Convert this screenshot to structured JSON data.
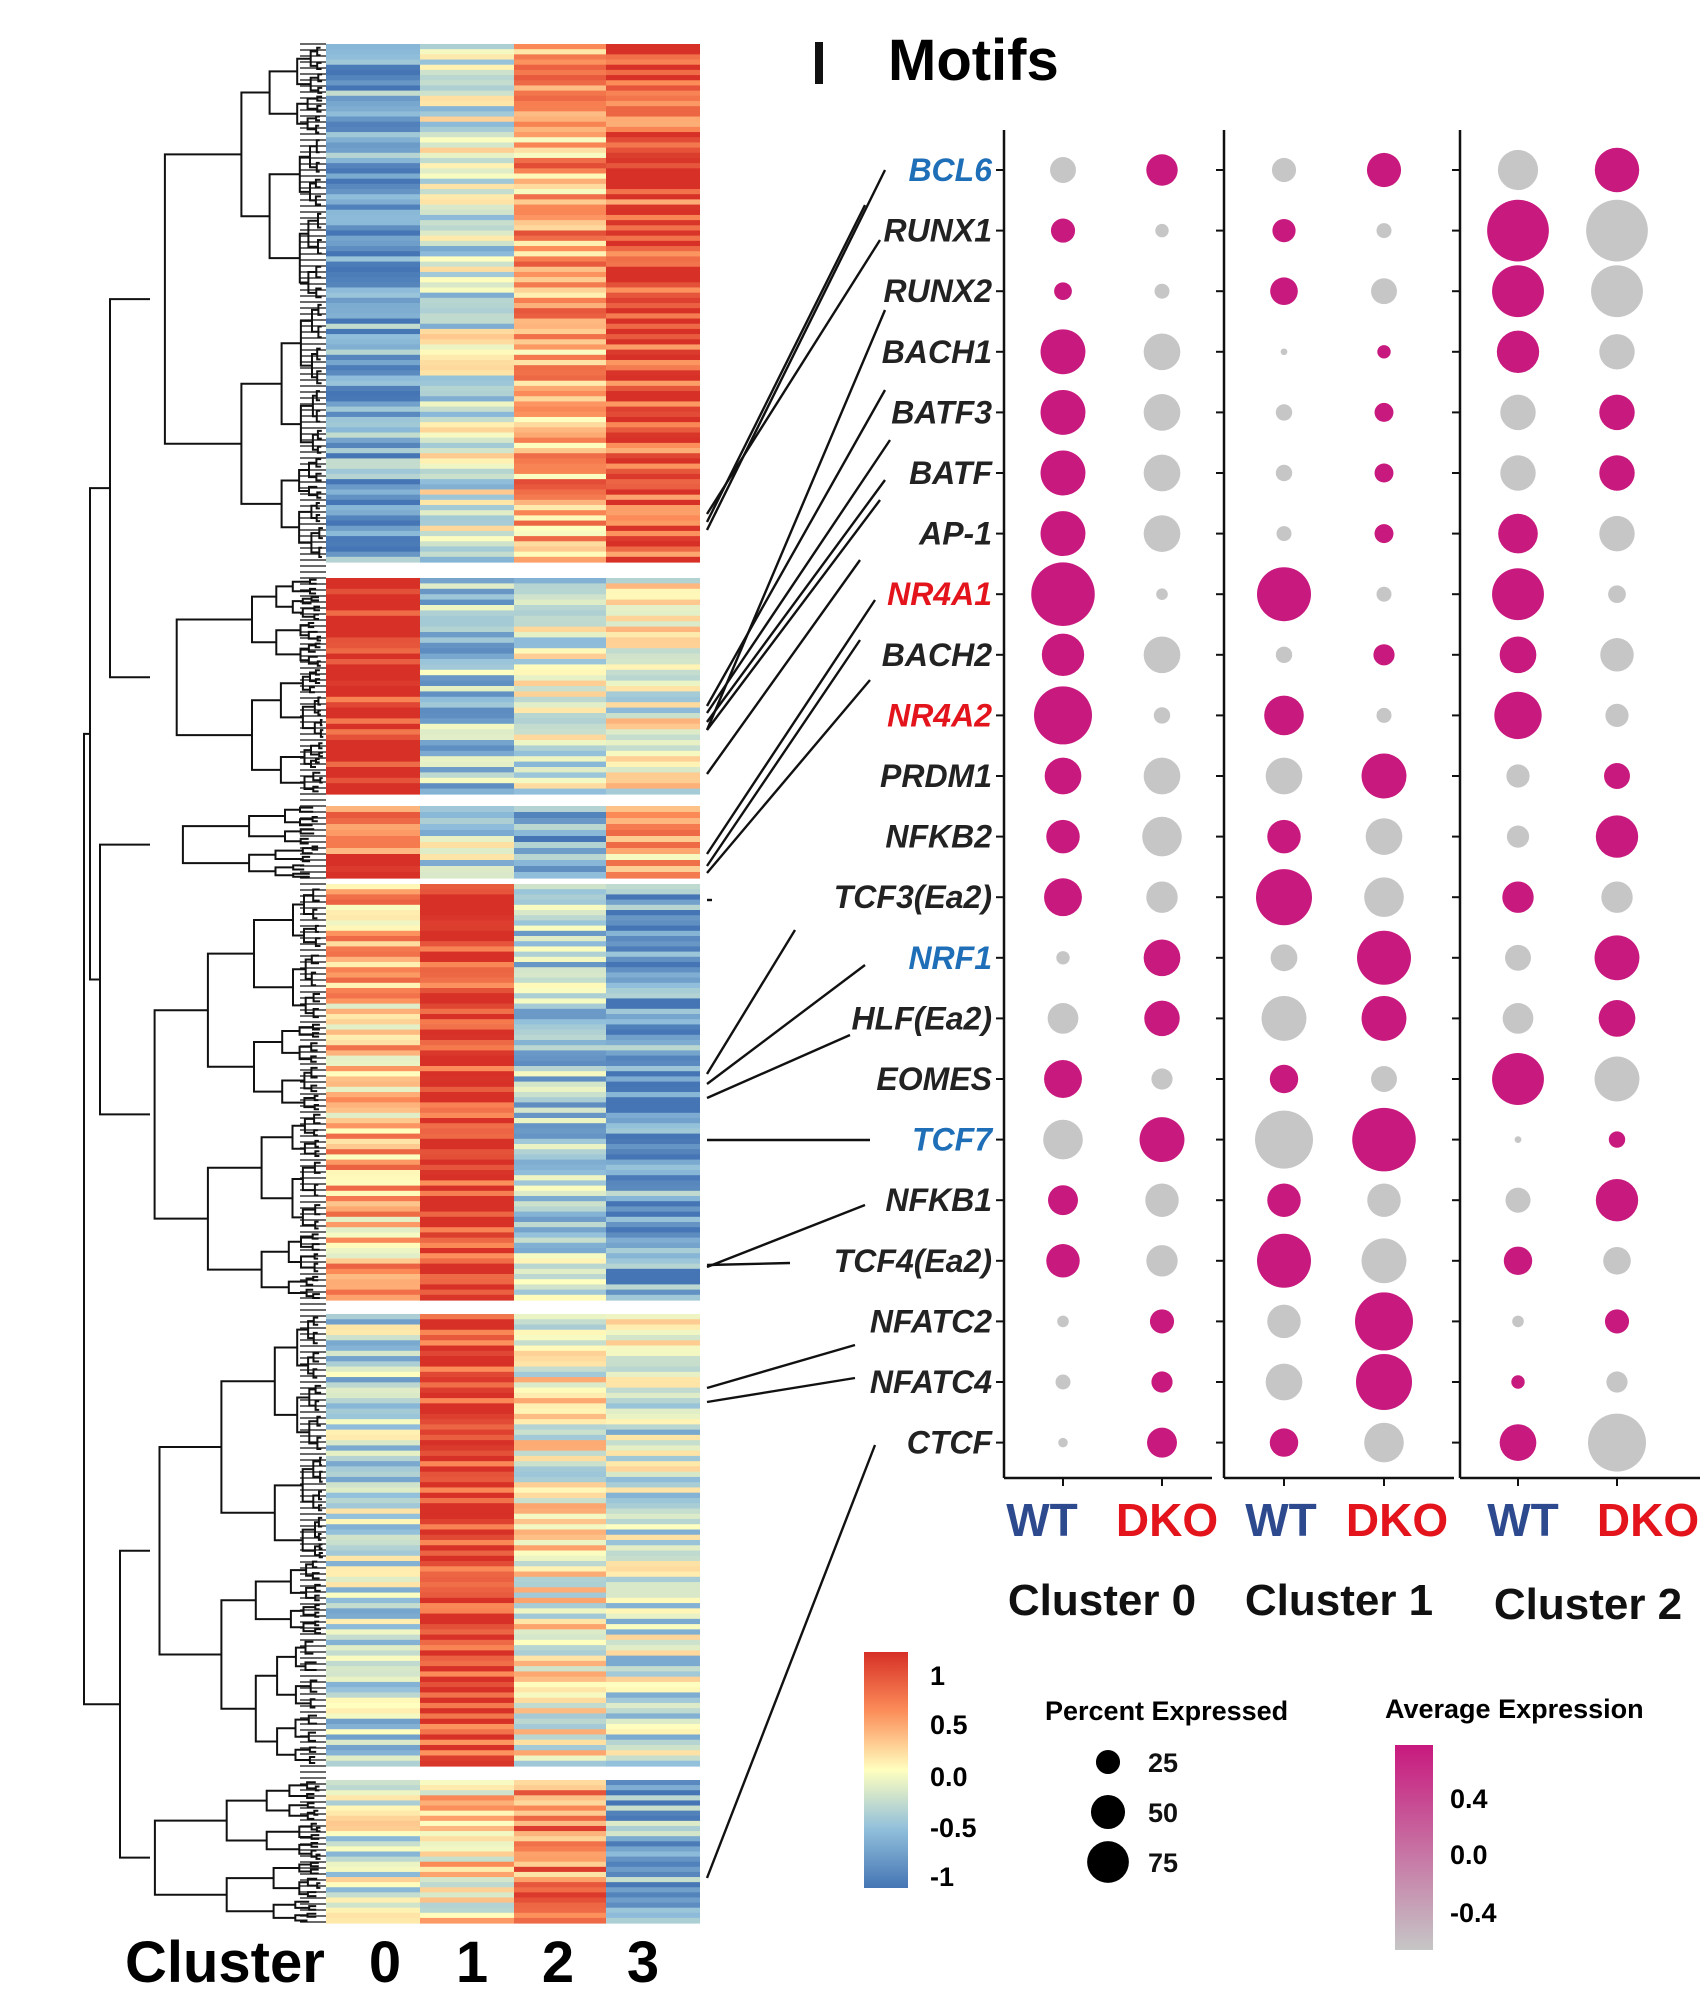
{
  "panel": {
    "letter": "I",
    "title": "Motifs"
  },
  "heatmap": {
    "column_axis_label": "Cluster",
    "columns": [
      "0",
      "1",
      "2",
      "3"
    ],
    "row_blocks": [
      {
        "block": 1,
        "rows": 100,
        "profile": [
          -0.7,
          -0.2,
          0.4,
          0.8
        ]
      },
      {
        "block": 2,
        "rows": 40,
        "profile": [
          1.0,
          -0.4,
          -0.2,
          -0.1
        ]
      },
      {
        "block": 3,
        "rows": 12,
        "profile": [
          0.6,
          -0.3,
          -0.7,
          0.4
        ]
      },
      {
        "block": 4,
        "rows": 80,
        "profile": [
          0.3,
          0.9,
          -0.4,
          -0.7
        ]
      },
      {
        "block": 5,
        "rows": 86,
        "profile": [
          -0.3,
          0.9,
          0.0,
          -0.2
        ]
      },
      {
        "block": 6,
        "rows": 28,
        "profile": [
          -0.2,
          0.1,
          0.5,
          -0.6
        ]
      }
    ],
    "colorbar": {
      "ticks": [
        "1",
        "0.5",
        "0.0",
        "-0.5",
        "-1"
      ],
      "colors": [
        "#d73027",
        "#fc8d59",
        "#ffffbf",
        "#91bfdb",
        "#4575b4"
      ]
    }
  },
  "motif_labels_colors": {
    "default": "#222222",
    "red": "#e3141b",
    "blue": "#1f6fb8"
  },
  "chart_data": {
    "type": "dot",
    "title": "Motifs",
    "groups": [
      "Cluster 0",
      "Cluster 1",
      "Cluster 2"
    ],
    "conditions": [
      "WT",
      "DKO"
    ],
    "condition_colors": {
      "WT": "#2e4a8f",
      "DKO": "#e3141b"
    },
    "motifs": [
      {
        "name": "BCL6",
        "label_color": "blue"
      },
      {
        "name": "RUNX1",
        "label_color": "default"
      },
      {
        "name": "RUNX2",
        "label_color": "default"
      },
      {
        "name": "BACH1",
        "label_color": "default"
      },
      {
        "name": "BATF3",
        "label_color": "default"
      },
      {
        "name": "BATF",
        "label_color": "default"
      },
      {
        "name": "AP-1",
        "label_color": "default"
      },
      {
        "name": "NR4A1",
        "label_color": "red"
      },
      {
        "name": "BACH2",
        "label_color": "default"
      },
      {
        "name": "NR4A2",
        "label_color": "red"
      },
      {
        "name": "PRDM1",
        "label_color": "default"
      },
      {
        "name": "NFKB2",
        "label_color": "default"
      },
      {
        "name": "TCF3(Ea2)",
        "label_color": "default"
      },
      {
        "name": "NRF1",
        "label_color": "blue"
      },
      {
        "name": "HLF(Ea2)",
        "label_color": "default"
      },
      {
        "name": "EOMES",
        "label_color": "default"
      },
      {
        "name": "TCF7",
        "label_color": "blue"
      },
      {
        "name": "NFKB1",
        "label_color": "default"
      },
      {
        "name": "TCF4(Ea2)",
        "label_color": "default"
      },
      {
        "name": "NFATC2",
        "label_color": "default"
      },
      {
        "name": "NFATC4",
        "label_color": "default"
      },
      {
        "name": "CTCF",
        "label_color": "default"
      }
    ],
    "percent_expressed": [
      [
        15,
        22,
        13,
        26,
        36,
        44
      ],
      [
        13,
        4,
        12,
        5,
        85,
        85
      ],
      [
        7,
        5,
        17,
        15,
        60,
        60
      ],
      [
        45,
        30,
        1,
        4,
        40,
        28
      ],
      [
        45,
        30,
        6,
        8,
        28,
        28
      ],
      [
        45,
        30,
        6,
        8,
        28,
        28
      ],
      [
        45,
        30,
        5,
        8,
        35,
        28
      ],
      [
        90,
        3,
        65,
        5,
        60,
        7
      ],
      [
        40,
        30,
        6,
        10,
        30,
        25
      ],
      [
        75,
        6,
        35,
        5,
        50,
        12
      ],
      [
        30,
        30,
        30,
        45,
        12,
        15
      ],
      [
        25,
        35,
        25,
        30,
        11,
        40
      ],
      [
        32,
        22,
        70,
        35,
        22,
        22
      ],
      [
        4,
        30,
        16,
        65,
        15,
        45
      ],
      [
        21,
        28,
        45,
        45,
        21,
        30
      ],
      [
        32,
        10,
        18,
        15,
        60,
        45
      ],
      [
        35,
        45,
        75,
        90,
        1,
        6
      ],
      [
        20,
        25,
        25,
        25,
        14,
        40
      ],
      [
        25,
        22,
        65,
        45,
        18,
        17
      ],
      [
        3,
        13,
        25,
        75,
        3,
        13
      ],
      [
        5,
        10,
        30,
        70,
        4,
        10
      ],
      [
        2,
        20,
        18,
        35,
        30,
        75
      ]
    ],
    "average_expression": [
      [
        -0.5,
        0.5,
        -0.5,
        0.5,
        -0.5,
        0.5
      ],
      [
        0.5,
        -0.5,
        0.5,
        -0.5,
        0.5,
        -0.5
      ],
      [
        0.5,
        -0.5,
        0.5,
        -0.5,
        0.5,
        -0.5
      ],
      [
        0.5,
        -0.5,
        -0.5,
        0.5,
        0.5,
        -0.5
      ],
      [
        0.5,
        -0.5,
        -0.5,
        0.5,
        -0.5,
        0.5
      ],
      [
        0.5,
        -0.5,
        -0.5,
        0.5,
        -0.5,
        0.5
      ],
      [
        0.5,
        -0.5,
        -0.5,
        0.5,
        0.5,
        -0.5
      ],
      [
        0.5,
        -0.5,
        0.5,
        -0.5,
        0.5,
        -0.5
      ],
      [
        0.5,
        -0.5,
        -0.5,
        0.5,
        0.5,
        -0.5
      ],
      [
        0.5,
        -0.5,
        0.5,
        -0.5,
        0.5,
        -0.5
      ],
      [
        0.5,
        -0.5,
        -0.5,
        0.5,
        -0.5,
        0.5
      ],
      [
        0.5,
        -0.5,
        0.5,
        -0.5,
        -0.5,
        0.5
      ],
      [
        0.5,
        -0.5,
        0.5,
        -0.5,
        0.5,
        -0.5
      ],
      [
        -0.5,
        0.5,
        -0.5,
        0.5,
        -0.5,
        0.5
      ],
      [
        -0.5,
        0.5,
        -0.5,
        0.5,
        -0.5,
        0.5
      ],
      [
        0.5,
        -0.5,
        0.5,
        -0.5,
        0.5,
        -0.5
      ],
      [
        -0.5,
        0.5,
        -0.5,
        0.5,
        -0.5,
        0.5
      ],
      [
        0.5,
        -0.5,
        0.5,
        -0.5,
        -0.5,
        0.5
      ],
      [
        0.5,
        -0.5,
        0.5,
        -0.5,
        0.5,
        -0.5
      ],
      [
        -0.5,
        0.5,
        -0.5,
        0.5,
        -0.5,
        0.5
      ],
      [
        -0.5,
        0.5,
        -0.5,
        0.5,
        0.5,
        -0.5
      ],
      [
        -0.5,
        0.5,
        0.5,
        -0.5,
        0.5,
        -0.5
      ]
    ],
    "legend_percent": {
      "title": "Percent Expressed",
      "values": [
        25,
        50,
        75
      ]
    },
    "legend_expression": {
      "title": "Average Expression",
      "ticks": [
        "0.4",
        "0.0",
        "-0.4"
      ],
      "high_color": "#c8197e",
      "low_color": "#c6c6c6"
    }
  }
}
